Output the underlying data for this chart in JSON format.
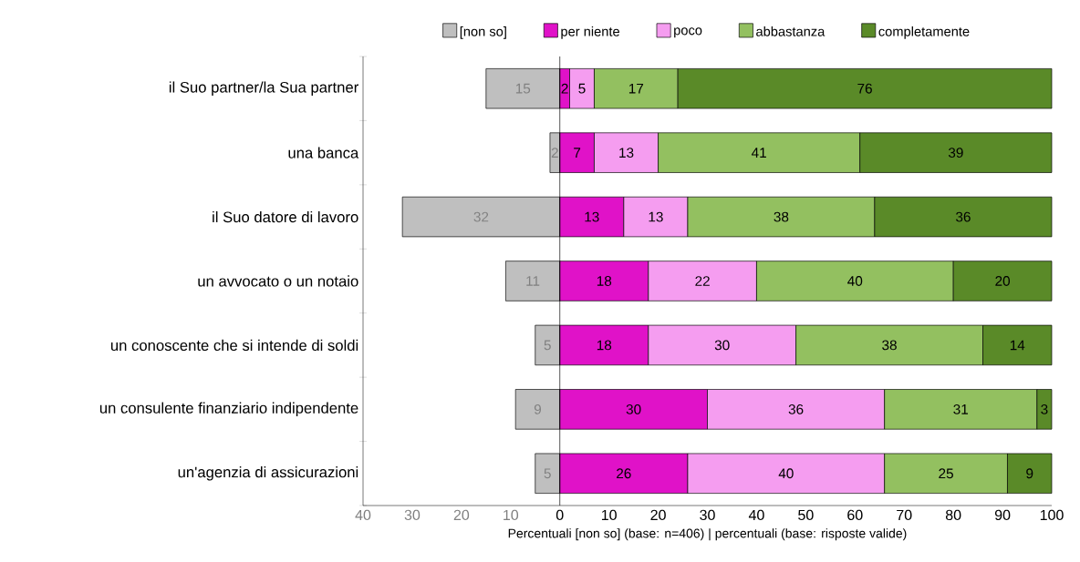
{
  "chart_data": {
    "type": "bar",
    "orientation": "horizontal",
    "categories": [
      "il Suo partner/la Sua partner",
      "una banca",
      "il Suo datore di lavoro",
      "un avvocato o un notaio",
      "un conoscente che si intende di soldi",
      "un consulente finanziario indipendente",
      "un'agenzia di assicurazioni"
    ],
    "series": [
      {
        "name": "[non so]",
        "color": "#bfbfbf",
        "values": [
          15,
          2,
          32,
          11,
          5,
          9,
          5
        ],
        "base": [
          -15,
          -2,
          -32,
          -11,
          -5,
          -9,
          -5
        ]
      },
      {
        "name": "per niente",
        "color": "#e012c8",
        "values": [
          2,
          7,
          13,
          18,
          18,
          30,
          26
        ],
        "base": [
          0,
          0,
          0,
          0,
          0,
          0,
          0
        ]
      },
      {
        "name": "poco",
        "color": "#f59df0",
        "values": [
          5,
          13,
          13,
          22,
          30,
          36,
          40
        ],
        "base": [
          2,
          7,
          13,
          18,
          18,
          30,
          26
        ]
      },
      {
        "name": "abbastanza",
        "color": "#93c060",
        "values": [
          17,
          41,
          38,
          40,
          38,
          31,
          25
        ],
        "base": [
          7,
          20,
          26,
          40,
          48,
          66,
          66
        ]
      },
      {
        "name": "completamente",
        "color": "#5a8a28",
        "values": [
          76,
          39,
          36,
          20,
          14,
          3,
          9
        ],
        "base": [
          24,
          61,
          64,
          80,
          86,
          97,
          91
        ]
      }
    ],
    "data_labels": true,
    "xlim": [
      -40,
      100
    ],
    "xticks": [
      {
        "value": -40,
        "label": "40"
      },
      {
        "value": -30,
        "label": "30"
      },
      {
        "value": -20,
        "label": "20"
      },
      {
        "value": -10,
        "label": "10"
      },
      0,
      10,
      20,
      30,
      40,
      50,
      60,
      70,
      80,
      90,
      100
    ],
    "xlabel": "Percentuali [non so] (base: n=406) | percentuali (base: risposte valide)",
    "legend": "top"
  }
}
